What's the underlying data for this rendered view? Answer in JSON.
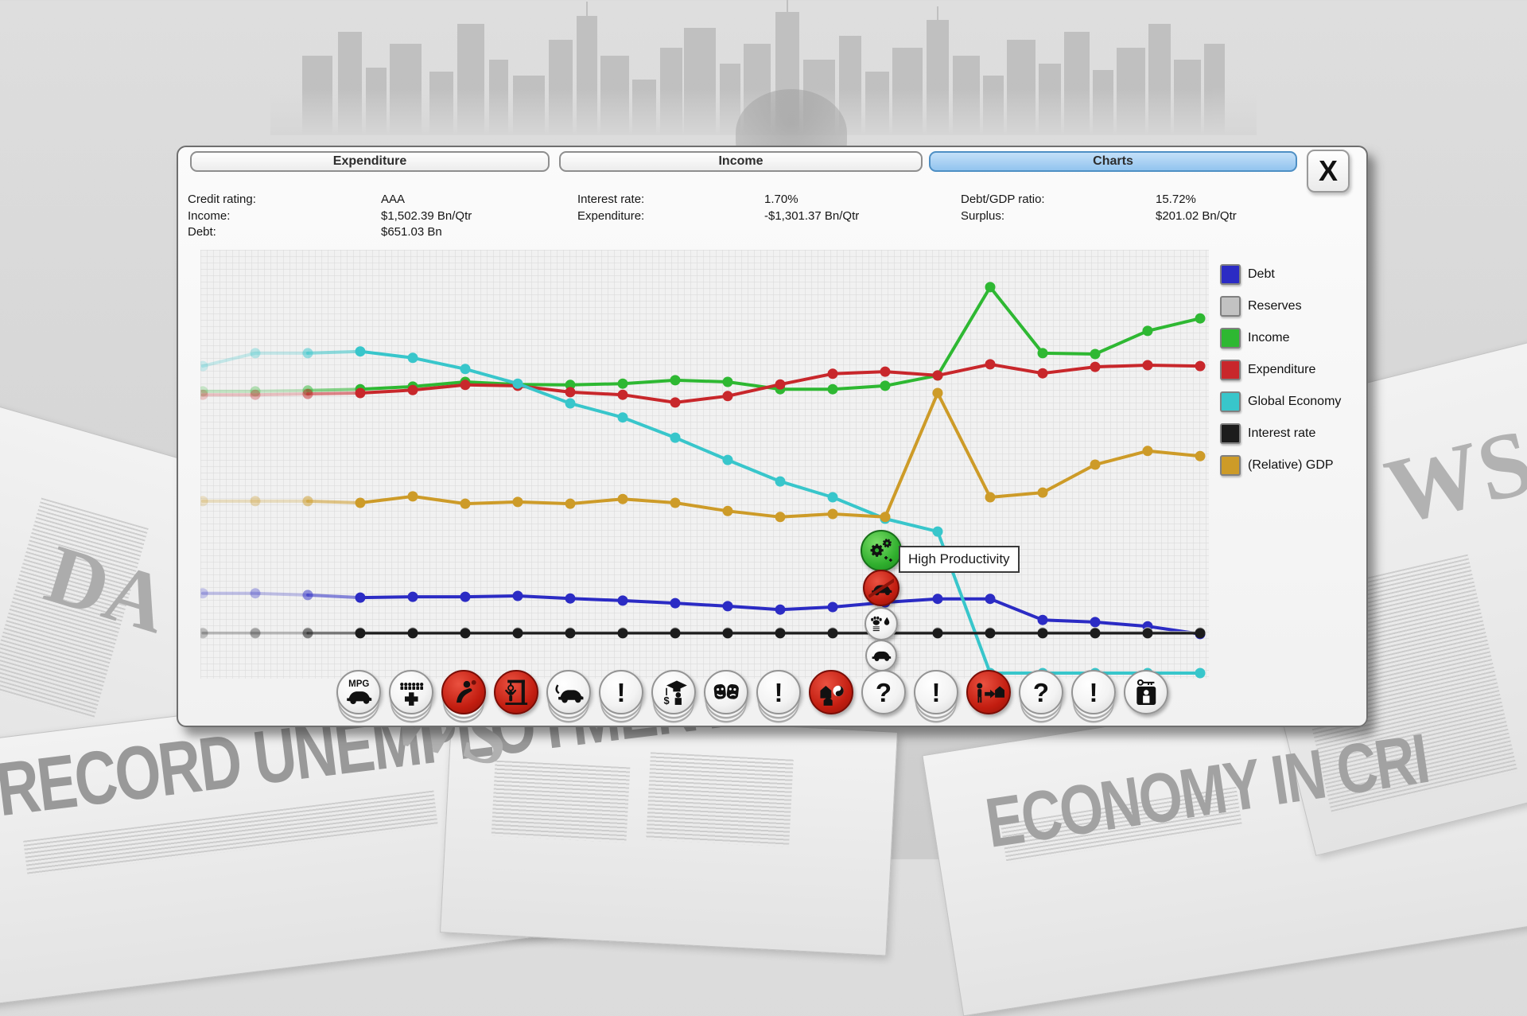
{
  "window": {
    "tabs": [
      {
        "label": "Expenditure",
        "active": false
      },
      {
        "label": "Income",
        "active": false
      },
      {
        "label": "Charts",
        "active": true
      }
    ],
    "close_label": "X"
  },
  "stats": {
    "columns": [
      {
        "rows": [
          {
            "label": "Credit rating:",
            "value": "AAA"
          },
          {
            "label": "Income:",
            "value": "$1,502.39 Bn/Qtr"
          },
          {
            "label": "Debt:",
            "value": "$651.03 Bn"
          }
        ]
      },
      {
        "rows": [
          {
            "label": "Interest rate:",
            "value": "1.70%"
          },
          {
            "label": "Expenditure:",
            "value": "-$1,301.37 Bn/Qtr"
          }
        ]
      },
      {
        "rows": [
          {
            "label": "Debt/GDP ratio:",
            "value": "15.72%"
          },
          {
            "label": "Surplus:",
            "value": "$201.02 Bn/Qtr"
          }
        ]
      }
    ]
  },
  "legend": {
    "items": [
      {
        "label": "Debt",
        "color": "#2b2bc4"
      },
      {
        "label": "Reserves",
        "color": "#c2c2c2"
      },
      {
        "label": "Income",
        "color": "#2eb832"
      },
      {
        "label": "Expenditure",
        "color": "#c8272b"
      },
      {
        "label": "Global Economy",
        "color": "#38c6cb"
      },
      {
        "label": "Interest rate",
        "color": "#1c1c1c"
      },
      {
        "label": "(Relative) GDP",
        "color": "#cd9b28"
      }
    ]
  },
  "tooltip": {
    "text": "High Productivity"
  },
  "event_stack": [
    {
      "name": "high-productivity-event-icon",
      "kind": "gears",
      "bg": "green"
    },
    {
      "name": "car-ban-event-icon",
      "kind": "nocar",
      "bg": "red"
    },
    {
      "name": "pollution-event-icon",
      "kind": "paw",
      "bg": "white"
    },
    {
      "name": "motoring-event-icon",
      "kind": "car",
      "bg": "white"
    }
  ],
  "event_row": [
    {
      "name": "fuel-efficiency-icon",
      "kind": "mpg",
      "bg": "white",
      "stack": true
    },
    {
      "name": "health-crowd-icon",
      "kind": "crowd",
      "bg": "white",
      "stack": true
    },
    {
      "name": "accident-event-icon",
      "kind": "accident",
      "bg": "red",
      "stack": true
    },
    {
      "name": "gallows-event-icon",
      "kind": "gallows",
      "bg": "red",
      "stack": false
    },
    {
      "name": "tow-car-icon",
      "kind": "tow",
      "bg": "white",
      "stack": true
    },
    {
      "name": "alert-event-icon",
      "kind": "excl",
      "bg": "white",
      "stack": true
    },
    {
      "name": "student-finance-icon",
      "kind": "student",
      "bg": "white",
      "stack": true
    },
    {
      "name": "arts-masks-icon",
      "kind": "masks",
      "bg": "white",
      "stack": true
    },
    {
      "name": "alert-event-icon",
      "kind": "excl",
      "bg": "white",
      "stack": true
    },
    {
      "name": "housing-event-icon",
      "kind": "housing",
      "bg": "red",
      "stack": false
    },
    {
      "name": "unknown-event-icon",
      "kind": "question",
      "bg": "white",
      "stack": false
    },
    {
      "name": "alert-event-icon",
      "kind": "excl",
      "bg": "white",
      "stack": true
    },
    {
      "name": "homelessness-event-icon",
      "kind": "homeless",
      "bg": "red",
      "stack": false
    },
    {
      "name": "unknown-event-icon",
      "kind": "question",
      "bg": "white",
      "stack": true
    },
    {
      "name": "alert-event-icon",
      "kind": "excl",
      "bg": "white",
      "stack": true
    },
    {
      "name": "prison-key-icon",
      "kind": "prison",
      "bg": "white",
      "stack": false
    }
  ],
  "chart_data": {
    "type": "line",
    "x": [
      1,
      2,
      3,
      4,
      5,
      6,
      7,
      8,
      9,
      10,
      11,
      12,
      13,
      14,
      15,
      16,
      17,
      18,
      19,
      20
    ],
    "title": "",
    "xlabel": "",
    "ylabel": "",
    "ylim": [
      0,
      100
    ],
    "grid": true,
    "legend_position": "right",
    "fade_in_points": 3,
    "series": [
      {
        "name": "Debt",
        "color": "#2b2bc4",
        "values": [
          19.9,
          19.9,
          19.5,
          18.9,
          19.1,
          19.1,
          19.3,
          18.7,
          18.2,
          17.6,
          16.9,
          16.1,
          16.7,
          17.8,
          18.6,
          18.6,
          13.7,
          13.2,
          12.2,
          10.4
        ]
      },
      {
        "name": "Reserves",
        "color": "#c2c2c2",
        "values": [
          10.8,
          10.8,
          10.8,
          10.8,
          10.8,
          10.8,
          10.8,
          10.8,
          10.8,
          10.8,
          10.8,
          10.8,
          10.8,
          10.8,
          10.8,
          10.8,
          10.8,
          10.8,
          10.8,
          10.8
        ]
      },
      {
        "name": "Income",
        "color": "#2eb832",
        "values": [
          67,
          67,
          67.2,
          67.5,
          68.1,
          69.2,
          68.6,
          68.5,
          68.8,
          69.6,
          69.2,
          67.5,
          67.5,
          68.3,
          70.7,
          91.3,
          75.9,
          75.7,
          81.1,
          84
        ]
      },
      {
        "name": "Expenditure",
        "color": "#c8272b",
        "values": [
          66.2,
          66.2,
          66.4,
          66.6,
          67.3,
          68.5,
          68.3,
          66.8,
          66.2,
          64.4,
          65.9,
          68.6,
          71.1,
          71.6,
          70.7,
          73.3,
          71.2,
          72.7,
          73.1,
          72.9
        ]
      },
      {
        "name": "Global Economy",
        "color": "#38c6cb",
        "values": [
          72.9,
          75.9,
          75.9,
          76.3,
          74.8,
          72.2,
          68.8,
          64.2,
          60.9,
          56.2,
          51,
          46,
          42.3,
          37.3,
          34.3,
          1.3,
          1.3,
          1.3,
          1.3,
          1.3
        ]
      },
      {
        "name": "Interest rate",
        "color": "#1c1c1c",
        "values": [
          10.6,
          10.6,
          10.6,
          10.6,
          10.6,
          10.6,
          10.6,
          10.6,
          10.6,
          10.6,
          10.6,
          10.6,
          10.6,
          10.6,
          10.6,
          10.6,
          10.6,
          10.6,
          10.6,
          10.6
        ]
      },
      {
        "name": "(Relative) GDP",
        "color": "#cd9b28",
        "values": [
          41.4,
          41.4,
          41.4,
          41,
          42.5,
          40.8,
          41.2,
          40.8,
          41.9,
          41,
          39.1,
          37.7,
          38.4,
          37.7,
          66.6,
          42.3,
          43.4,
          49.9,
          53.1,
          51.9
        ]
      }
    ]
  },
  "background": {
    "headlines": [
      {
        "text": "RECORD UNEMPLOYMENT!"
      },
      {
        "text": "ECONOMY IN CRI"
      },
      {
        "text": "DA"
      },
      {
        "text": "WS"
      },
      {
        "text": "WS"
      }
    ]
  }
}
